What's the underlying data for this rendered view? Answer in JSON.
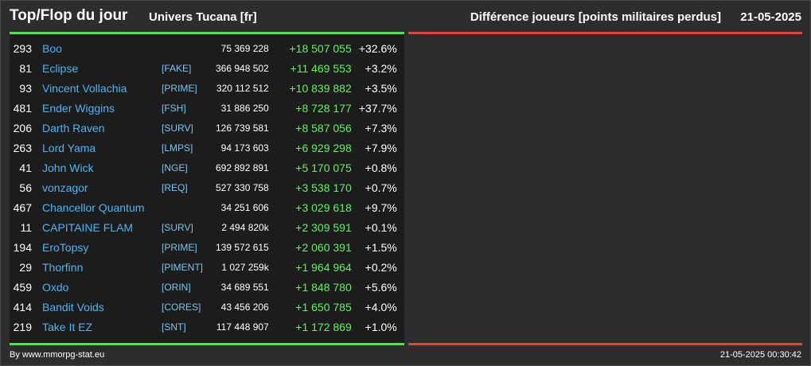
{
  "header": {
    "title": "Top/Flop du jour",
    "universe": "Univers Tucana [fr]",
    "metric": "Différence joueurs [points militaires perdus]",
    "date": "21-05-2025"
  },
  "colors": {
    "top_accent": "#55dd55",
    "flop_accent": "#dd4444",
    "player_name": "#4fb3f0",
    "positive_diff": "#66ee66"
  },
  "rows": [
    {
      "rank": "293",
      "name": "Boo",
      "alliance": "",
      "points": "75 369 228",
      "diff": "+18 507 055",
      "pct": "+32.6%"
    },
    {
      "rank": "81",
      "name": "Eclipse",
      "alliance": "[FAKE]",
      "points": "366 948 502",
      "diff": "+11 469 553",
      "pct": "+3.2%"
    },
    {
      "rank": "93",
      "name": "Vincent Vollachia",
      "alliance": "[PRIME]",
      "points": "320 112 512",
      "diff": "+10 839 882",
      "pct": "+3.5%"
    },
    {
      "rank": "481",
      "name": "Ender Wiggins",
      "alliance": "[FSH]",
      "points": "31 886 250",
      "diff": "+8 728 177",
      "pct": "+37.7%"
    },
    {
      "rank": "206",
      "name": "Darth Raven",
      "alliance": "[SURV]",
      "points": "126 739 581",
      "diff": "+8 587 056",
      "pct": "+7.3%"
    },
    {
      "rank": "263",
      "name": "Lord Yama",
      "alliance": "[LMPS]",
      "points": "94 173 603",
      "diff": "+6 929 298",
      "pct": "+7.9%"
    },
    {
      "rank": "41",
      "name": "John Wick",
      "alliance": "[NGE]",
      "points": "692 892 891",
      "diff": "+5 170 075",
      "pct": "+0.8%"
    },
    {
      "rank": "56",
      "name": "vonzagor",
      "alliance": "[REQ]",
      "points": "527 330 758",
      "diff": "+3 538 170",
      "pct": "+0.7%"
    },
    {
      "rank": "467",
      "name": "Chancellor Quantum",
      "alliance": "",
      "points": "34 251 606",
      "diff": "+3 029 618",
      "pct": "+9.7%"
    },
    {
      "rank": "11",
      "name": "CAPITAINE FLAM",
      "alliance": "[SURV]",
      "points": "2 494 820k",
      "diff": "+2 309 591",
      "pct": "+0.1%"
    },
    {
      "rank": "194",
      "name": "EroTopsy",
      "alliance": "[PRIME]",
      "points": "139 572 615",
      "diff": "+2 060 391",
      "pct": "+1.5%"
    },
    {
      "rank": "29",
      "name": "Thorfinn",
      "alliance": "[PIMENT]",
      "points": "1 027 259k",
      "diff": "+1 964 964",
      "pct": "+0.2%"
    },
    {
      "rank": "459",
      "name": "Oxdo",
      "alliance": "[ORIN]",
      "points": "34 689 551",
      "diff": "+1 848 780",
      "pct": "+5.6%"
    },
    {
      "rank": "414",
      "name": "Bandit Voids",
      "alliance": "[CORES]",
      "points": "43 456 206",
      "diff": "+1 650 785",
      "pct": "+4.0%"
    },
    {
      "rank": "219",
      "name": "Take It EZ",
      "alliance": "[SNT]",
      "points": "117 448 907",
      "diff": "+1 172 869",
      "pct": "+1.0%"
    }
  ],
  "footer": {
    "source": "By www.mmorpg-stat.eu",
    "generated": "21-05-2025 00:30:42"
  }
}
